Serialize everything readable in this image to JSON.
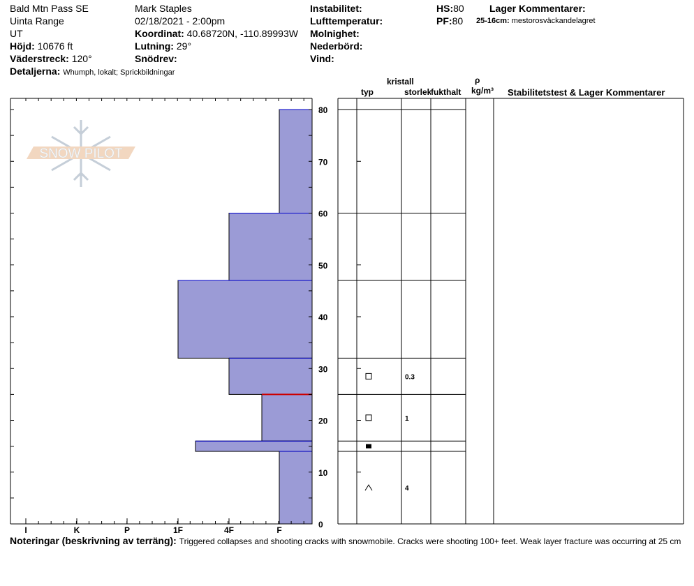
{
  "header": {
    "location": "Bald Mtn Pass SE",
    "range": "Uinta Range",
    "state": "UT",
    "elevation_label": "Höjd:",
    "elevation": "10676 ft",
    "aspect_label": "Väderstreck:",
    "aspect": "120°",
    "details_label": "Detaljerna:",
    "details": "Whumph, lokalt; Sprickbildningar",
    "observer": "Mark Staples",
    "datetime": "02/18/2021 - 2:00pm",
    "coord_label": "Koordinat:",
    "coord": "40.68720N, -110.89993W",
    "slope_label": "Lutning:",
    "slope": "29°",
    "drift_label": "Snödrev:",
    "instability_label": "Instabilitet:",
    "airtemp_label": "Lufttemperatur:",
    "cloud_label": "Molnighet:",
    "precip_label": "Nederbörd:",
    "wind_label": "Vind:",
    "hs_label": "HS:",
    "hs": "80",
    "pf_label": "PF:",
    "pf": "80",
    "layer_comments_label": "Lager Kommentarer:",
    "layer_comment_range": "25-16cm:",
    "layer_comment": "mestorosväckandelagret"
  },
  "table_headers": {
    "crystal": "kristall",
    "type": "typ",
    "size": "storlek",
    "moisture": "fukthalt",
    "rho": "ρ",
    "density_unit": "kg/m³",
    "stability": "Stabilitetstest & Lager Kommentarer"
  },
  "logo": "SNOW PILOT",
  "notes_label": "Noteringar (beskrivning av terräng):",
  "notes": "Triggered collapses and shooting cracks with snowmobile. Cracks were shooting 100+ feet. Weak layer fracture was occurring at 25 cm",
  "colors": {
    "bar": "#9b9bd6",
    "bar_edge": "#0000cc",
    "weak_layer": "#cc0000"
  },
  "chart_data": {
    "type": "bar",
    "orientation": "horizontal",
    "ylabel": "",
    "y_ticks": [
      0,
      10,
      20,
      30,
      40,
      50,
      60,
      70,
      80
    ],
    "ylim": [
      0,
      80
    ],
    "x_ticks": [
      "I",
      "K",
      "P",
      "1F",
      "4F",
      "F"
    ],
    "layers": [
      {
        "top": 80,
        "bottom": 60,
        "hardness": "F",
        "grain": "",
        "size": ""
      },
      {
        "top": 60,
        "bottom": 47,
        "hardness": "4F",
        "grain": "",
        "size": ""
      },
      {
        "top": 47,
        "bottom": 32,
        "hardness": "1F",
        "grain": "",
        "size": ""
      },
      {
        "top": 32,
        "bottom": 25,
        "hardness": "4F",
        "grain": "faceted-square",
        "size": "0.3"
      },
      {
        "top": 25,
        "bottom": 16,
        "hardness": "F-",
        "grain": "faceted-square",
        "size": "1"
      },
      {
        "top": 16,
        "bottom": 14,
        "hardness": "1F+",
        "grain": "filled-square",
        "size": ""
      },
      {
        "top": 14,
        "bottom": 0,
        "hardness": "F",
        "grain": "depth-hoar",
        "size": "4"
      }
    ],
    "weak_layer_depth": 25
  }
}
